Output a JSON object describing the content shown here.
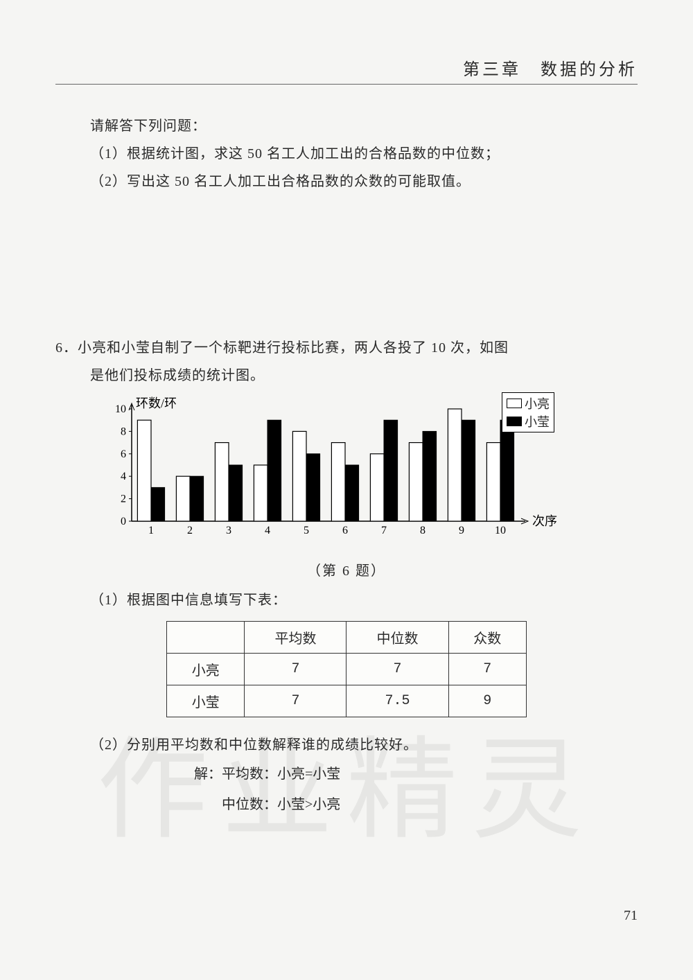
{
  "chapter": "第三章　数据的分析",
  "intro": "请解答下列问题：",
  "q1": "（1）根据统计图，求这 50 名工人加工出的合格品数的中位数；",
  "q2": "（2）写出这 50 名工人加工出合格品数的众数的可能取值。",
  "q6_line1": "6．小亮和小莹自制了一个标靶进行投标比赛，两人各投了 10 次，如图",
  "q6_line2": "是他们投标成绩的统计图。",
  "chart": {
    "type": "grouped-bar",
    "y_label": "环数/环",
    "x_label": "次序",
    "categories": [
      "1",
      "2",
      "3",
      "4",
      "5",
      "6",
      "7",
      "8",
      "9",
      "10"
    ],
    "x_positions": [
      0,
      1,
      2,
      3,
      4,
      5,
      6,
      7,
      8,
      9
    ],
    "series": [
      {
        "name": "小亮",
        "color": "#ffffff",
        "border": "#000000",
        "values": [
          9,
          4,
          7,
          5,
          8,
          7,
          6,
          7,
          10,
          7
        ]
      },
      {
        "name": "小莹",
        "color": "#000000",
        "border": "#000000",
        "values": [
          3,
          4,
          5,
          9,
          6,
          5,
          9,
          8,
          9,
          9
        ]
      }
    ],
    "ylim": [
      0,
      10
    ],
    "yticks": [
      0,
      2,
      4,
      6,
      8,
      10
    ],
    "bar_width": 0.35,
    "background_color": "#fcfcfa",
    "axis_color": "#000000",
    "tick_fontsize": 16,
    "label_fontsize": 18
  },
  "legend": {
    "a": "小亮",
    "b": "小莹"
  },
  "caption": "（第 6 题）",
  "table_intro": "（1）根据图中信息填写下表：",
  "table": {
    "columns": [
      "",
      "平均数",
      "中位数",
      "众数"
    ],
    "rows": [
      [
        "小亮",
        "7",
        "7",
        "7"
      ],
      [
        "小莹",
        "7",
        "7.5",
        "9"
      ]
    ],
    "border_color": "#333333",
    "cell_bg": "#fcfcfa",
    "col_widths_pct": [
      22,
      26,
      26,
      26
    ]
  },
  "part2": "（2）分别用平均数和中位数解释谁的成绩比较好。",
  "ans1": "解：平均数：小亮=小莹",
  "ans2": "中位数：小莹>小亮",
  "pagenum": "71",
  "watermark": "作业精灵"
}
